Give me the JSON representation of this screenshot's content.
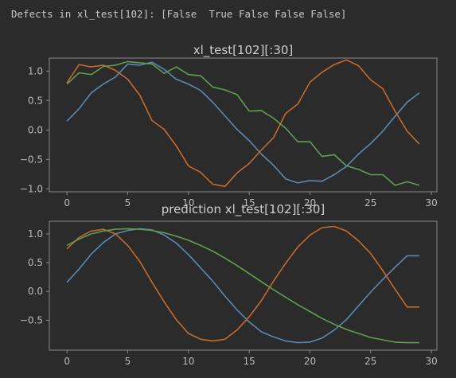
{
  "console": {
    "text": "Defects in xl_test[102]: [False  True False False False]"
  },
  "colors": {
    "background": "#2b2b2b",
    "axes_border": "#8a8a8a",
    "text": "#bbbbbb",
    "series_blue": "#5a88b4",
    "series_orange": "#c8692b",
    "series_green": "#5e9f4f"
  },
  "chart_data": [
    {
      "type": "line",
      "title": "xl_test[102][:30]",
      "xlabel": "",
      "ylabel": "",
      "xlim": [
        -1.45,
        30.45
      ],
      "ylim": [
        -1.05,
        1.22
      ],
      "xticks": [
        0,
        5,
        10,
        15,
        20,
        25,
        30
      ],
      "yticks": [
        1.0,
        0.5,
        0.0,
        -0.5,
        -1.0
      ],
      "ytick_labels": [
        "1.0",
        "0.5",
        "0.0",
        "−0.5",
        "−1.0"
      ],
      "x": [
        0,
        1,
        2,
        3,
        4,
        5,
        6,
        7,
        8,
        9,
        10,
        11,
        12,
        13,
        14,
        15,
        16,
        17,
        18,
        19,
        20,
        21,
        22,
        23,
        24,
        25,
        26,
        27,
        28,
        29
      ],
      "series": [
        {
          "name": "blue",
          "color": "#5a88b4",
          "values": [
            0.15,
            0.36,
            0.63,
            0.78,
            0.9,
            1.12,
            1.1,
            1.15,
            1.03,
            0.86,
            0.78,
            0.67,
            0.47,
            0.24,
            0.01,
            -0.18,
            -0.41,
            -0.6,
            -0.83,
            -0.9,
            -0.86,
            -0.87,
            -0.76,
            -0.62,
            -0.41,
            -0.23,
            -0.02,
            0.23,
            0.47,
            0.63
          ]
        },
        {
          "name": "orange",
          "color": "#c8692b",
          "values": [
            0.8,
            1.11,
            1.07,
            1.1,
            1.01,
            0.86,
            0.59,
            0.16,
            0.01,
            -0.27,
            -0.61,
            -0.72,
            -0.92,
            -0.96,
            -0.73,
            -0.57,
            -0.34,
            -0.13,
            0.28,
            0.44,
            0.81,
            0.98,
            1.11,
            1.19,
            1.09,
            0.85,
            0.7,
            0.32,
            -0.02,
            -0.24
          ]
        },
        {
          "name": "green",
          "color": "#5e9f4f",
          "values": [
            0.78,
            0.97,
            0.94,
            1.08,
            1.1,
            1.16,
            1.14,
            1.12,
            0.96,
            1.07,
            0.94,
            0.92,
            0.73,
            0.68,
            0.6,
            0.32,
            0.33,
            0.2,
            0.03,
            -0.2,
            -0.2,
            -0.45,
            -0.42,
            -0.61,
            -0.67,
            -0.76,
            -0.76,
            -0.94,
            -0.88,
            -0.94
          ]
        }
      ]
    },
    {
      "type": "line",
      "title": "prediction xl_test[102][:30]",
      "xlabel": "",
      "ylabel": "",
      "xlim": [
        -1.45,
        30.45
      ],
      "ylim": [
        -1.02,
        1.22
      ],
      "xticks": [
        0,
        5,
        10,
        15,
        20,
        25,
        30
      ],
      "yticks": [
        1.0,
        0.5,
        0.0,
        -0.5
      ],
      "ytick_labels": [
        "1.0",
        "0.5",
        "0.0",
        "−0.5"
      ],
      "x": [
        0,
        1,
        2,
        3,
        4,
        5,
        6,
        7,
        8,
        9,
        10,
        11,
        12,
        13,
        14,
        15,
        16,
        17,
        18,
        19,
        20,
        21,
        22,
        23,
        24,
        25,
        26,
        27,
        28,
        29
      ],
      "series": [
        {
          "name": "blue",
          "color": "#5a88b4",
          "values": [
            0.16,
            0.39,
            0.65,
            0.85,
            1.0,
            1.06,
            1.09,
            1.07,
            0.98,
            0.84,
            0.64,
            0.41,
            0.18,
            -0.08,
            -0.32,
            -0.53,
            -0.7,
            -0.79,
            -0.86,
            -0.89,
            -0.88,
            -0.81,
            -0.67,
            -0.49,
            -0.25,
            -0.01,
            0.21,
            0.42,
            0.62,
            0.62
          ]
        },
        {
          "name": "orange",
          "color": "#c8692b",
          "values": [
            0.74,
            0.94,
            1.05,
            1.08,
            1.0,
            0.8,
            0.52,
            0.16,
            -0.18,
            -0.49,
            -0.73,
            -0.83,
            -0.86,
            -0.83,
            -0.67,
            -0.44,
            -0.16,
            0.18,
            0.49,
            0.77,
            0.98,
            1.11,
            1.13,
            1.05,
            0.88,
            0.66,
            0.36,
            0.04,
            -0.27,
            -0.27
          ]
        },
        {
          "name": "green",
          "color": "#5e9f4f",
          "values": [
            0.8,
            0.91,
            1.0,
            1.05,
            1.08,
            1.09,
            1.08,
            1.06,
            1.02,
            0.96,
            0.89,
            0.8,
            0.7,
            0.58,
            0.45,
            0.31,
            0.17,
            0.03,
            -0.1,
            -0.23,
            -0.35,
            -0.47,
            -0.57,
            -0.66,
            -0.73,
            -0.8,
            -0.84,
            -0.88,
            -0.89,
            -0.89
          ]
        }
      ]
    }
  ]
}
